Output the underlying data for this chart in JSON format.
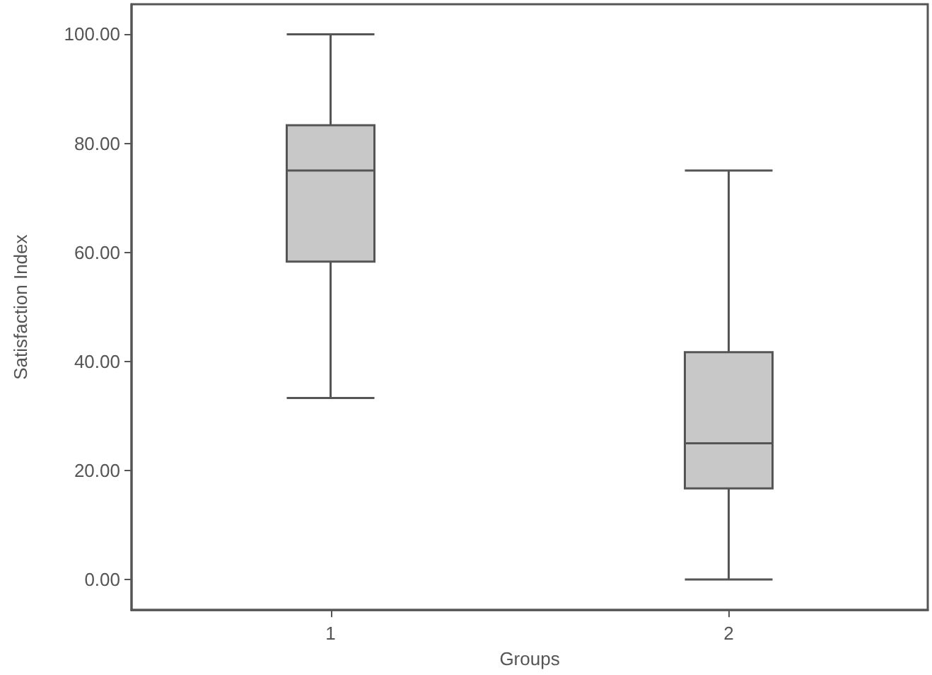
{
  "chart_data": {
    "type": "box",
    "xlabel": "Groups",
    "ylabel": "Satisfaction Index",
    "categories": [
      "1",
      "2"
    ],
    "color": "#c8c8c8",
    "boxes": [
      {
        "low": 33.3,
        "q1": 58.3,
        "median": 75,
        "q3": 83.3,
        "high": 100
      },
      {
        "low": 0,
        "q1": 16.7,
        "median": 25,
        "q3": 41.7,
        "high": 75
      }
    ],
    "ylim": [
      -5.6,
      105.5
    ],
    "yticks": [
      {
        "value": 0,
        "label": "0.00"
      },
      {
        "value": 20,
        "label": "20.00"
      },
      {
        "value": 40,
        "label": "40.00"
      },
      {
        "value": 60,
        "label": "60.00"
      },
      {
        "value": 80,
        "label": "80.00"
      },
      {
        "value": 100,
        "label": "100.00"
      }
    ]
  }
}
